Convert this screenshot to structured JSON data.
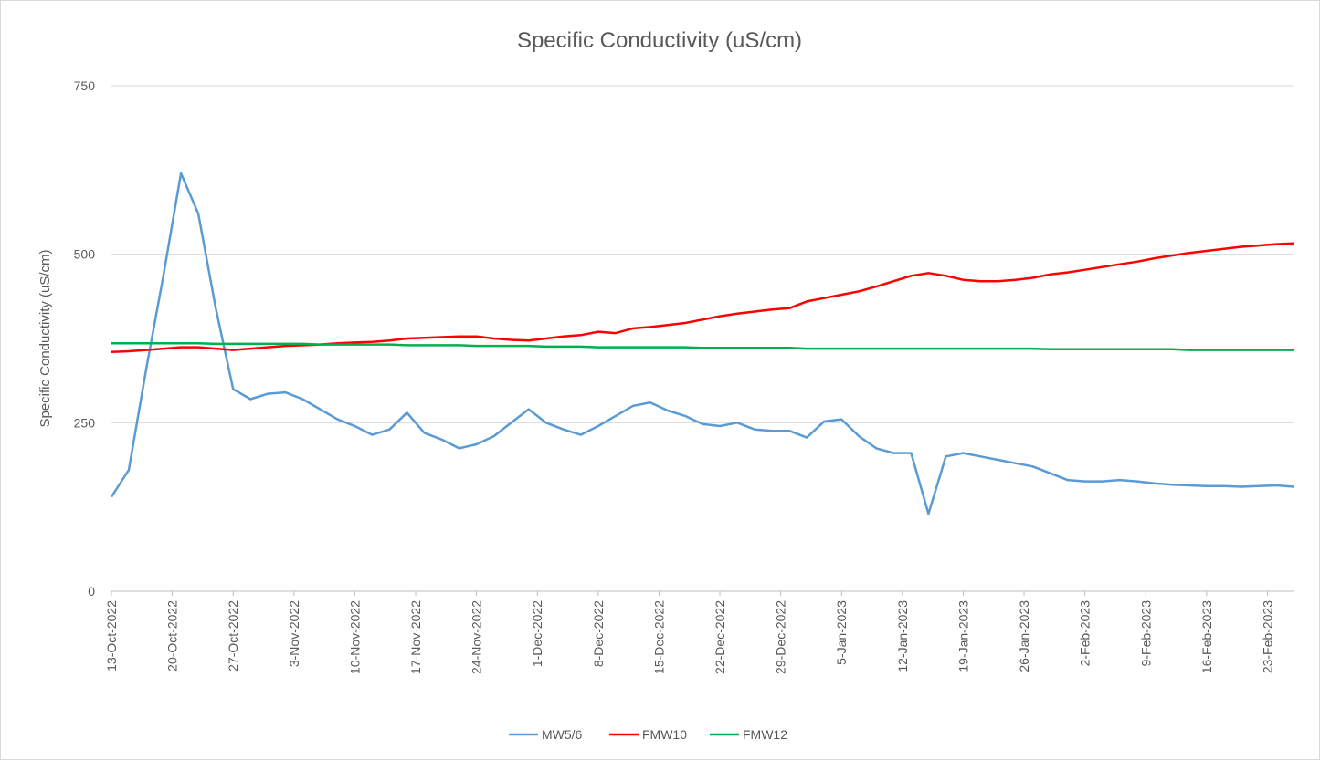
{
  "chart_data": {
    "type": "line",
    "title": "Specific Conductivity (uS/cm)",
    "y_label": "Specific Conductivity (uS/cm)",
    "x": [
      "13-Oct-2022",
      "15-Oct-2022",
      "17-Oct-2022",
      "19-Oct-2022",
      "21-Oct-2022",
      "23-Oct-2022",
      "25-Oct-2022",
      "27-Oct-2022",
      "29-Oct-2022",
      "31-Oct-2022",
      "2-Nov-2022",
      "4-Nov-2022",
      "6-Nov-2022",
      "8-Nov-2022",
      "10-Nov-2022",
      "12-Nov-2022",
      "14-Nov-2022",
      "16-Nov-2022",
      "18-Nov-2022",
      "20-Nov-2022",
      "22-Nov-2022",
      "24-Nov-2022",
      "26-Nov-2022",
      "28-Nov-2022",
      "30-Nov-2022",
      "2-Dec-2022",
      "4-Dec-2022",
      "6-Dec-2022",
      "8-Dec-2022",
      "10-Dec-2022",
      "12-Dec-2022",
      "14-Dec-2022",
      "16-Dec-2022",
      "18-Dec-2022",
      "20-Dec-2022",
      "22-Dec-2022",
      "24-Dec-2022",
      "26-Dec-2022",
      "28-Dec-2022",
      "30-Dec-2022",
      "1-Jan-2023",
      "3-Jan-2023",
      "5-Jan-2023",
      "7-Jan-2023",
      "9-Jan-2023",
      "11-Jan-2023",
      "13-Jan-2023",
      "15-Jan-2023",
      "17-Jan-2023",
      "19-Jan-2023",
      "21-Jan-2023",
      "23-Jan-2023",
      "25-Jan-2023",
      "27-Jan-2023",
      "29-Jan-2023",
      "31-Jan-2023",
      "2-Feb-2023",
      "4-Feb-2023",
      "6-Feb-2023",
      "8-Feb-2023",
      "10-Feb-2023",
      "12-Feb-2023",
      "14-Feb-2023",
      "16-Feb-2023",
      "18-Feb-2023",
      "20-Feb-2023",
      "22-Feb-2023",
      "24-Feb-2023",
      "26-Feb-2023"
    ],
    "series": [
      {
        "name": "MW5/6",
        "color": "#5b9bd5",
        "values": [
          140,
          180,
          330,
          470,
          620,
          560,
          420,
          300,
          285,
          293,
          295,
          285,
          270,
          255,
          245,
          232,
          240,
          265,
          235,
          225,
          212,
          218,
          230,
          250,
          270,
          250,
          240,
          232,
          245,
          260,
          275,
          280,
          268,
          260,
          248,
          245,
          250,
          240,
          238,
          238,
          228,
          252,
          255,
          230,
          212,
          205,
          205,
          115,
          200,
          205,
          200,
          195,
          190,
          185,
          175,
          165,
          163,
          163,
          165,
          163,
          160,
          158,
          157,
          156,
          156,
          155,
          156,
          157,
          155
        ]
      },
      {
        "name": "FMW10",
        "color": "#ff0000",
        "values": [
          355,
          356,
          358,
          360,
          362,
          362,
          360,
          358,
          360,
          362,
          364,
          365,
          366,
          368,
          369,
          370,
          372,
          375,
          376,
          377,
          378,
          378,
          375,
          373,
          372,
          375,
          378,
          380,
          385,
          383,
          390,
          392,
          395,
          398,
          403,
          408,
          412,
          415,
          418,
          420,
          430,
          435,
          440,
          445,
          452,
          460,
          468,
          472,
          468,
          462,
          460,
          460,
          462,
          465,
          470,
          473,
          477,
          481,
          485,
          489,
          494,
          498,
          502,
          505,
          508,
          511,
          513,
          515,
          516
        ]
      },
      {
        "name": "FMW12",
        "color": "#00b050",
        "values": [
          368,
          368,
          368,
          368,
          368,
          368,
          367,
          367,
          367,
          367,
          367,
          367,
          366,
          366,
          366,
          366,
          366,
          365,
          365,
          365,
          365,
          364,
          364,
          364,
          364,
          363,
          363,
          363,
          362,
          362,
          362,
          362,
          362,
          362,
          361,
          361,
          361,
          361,
          361,
          361,
          360,
          360,
          360,
          360,
          360,
          360,
          360,
          360,
          360,
          360,
          360,
          360,
          360,
          360,
          359,
          359,
          359,
          359,
          359,
          359,
          359,
          359,
          358,
          358,
          358,
          358,
          358,
          358,
          358
        ]
      }
    ],
    "xlim": [
      "13-Oct-2022",
      "26-Feb-2023"
    ],
    "xticks": [
      "13-Oct-2022",
      "20-Oct-2022",
      "27-Oct-2022",
      "3-Nov-2022",
      "10-Nov-2022",
      "17-Nov-2022",
      "24-Nov-2022",
      "1-Dec-2022",
      "8-Dec-2022",
      "15-Dec-2022",
      "22-Dec-2022",
      "29-Dec-2022",
      "5-Jan-2023",
      "12-Jan-2023",
      "19-Jan-2023",
      "26-Jan-2023",
      "2-Feb-2023",
      "9-Feb-2023",
      "16-Feb-2023",
      "23-Feb-2023"
    ],
    "ylim": [
      0,
      750
    ],
    "yticks": [
      0,
      250,
      500,
      750
    ],
    "grid": true,
    "legend": "bottom"
  }
}
